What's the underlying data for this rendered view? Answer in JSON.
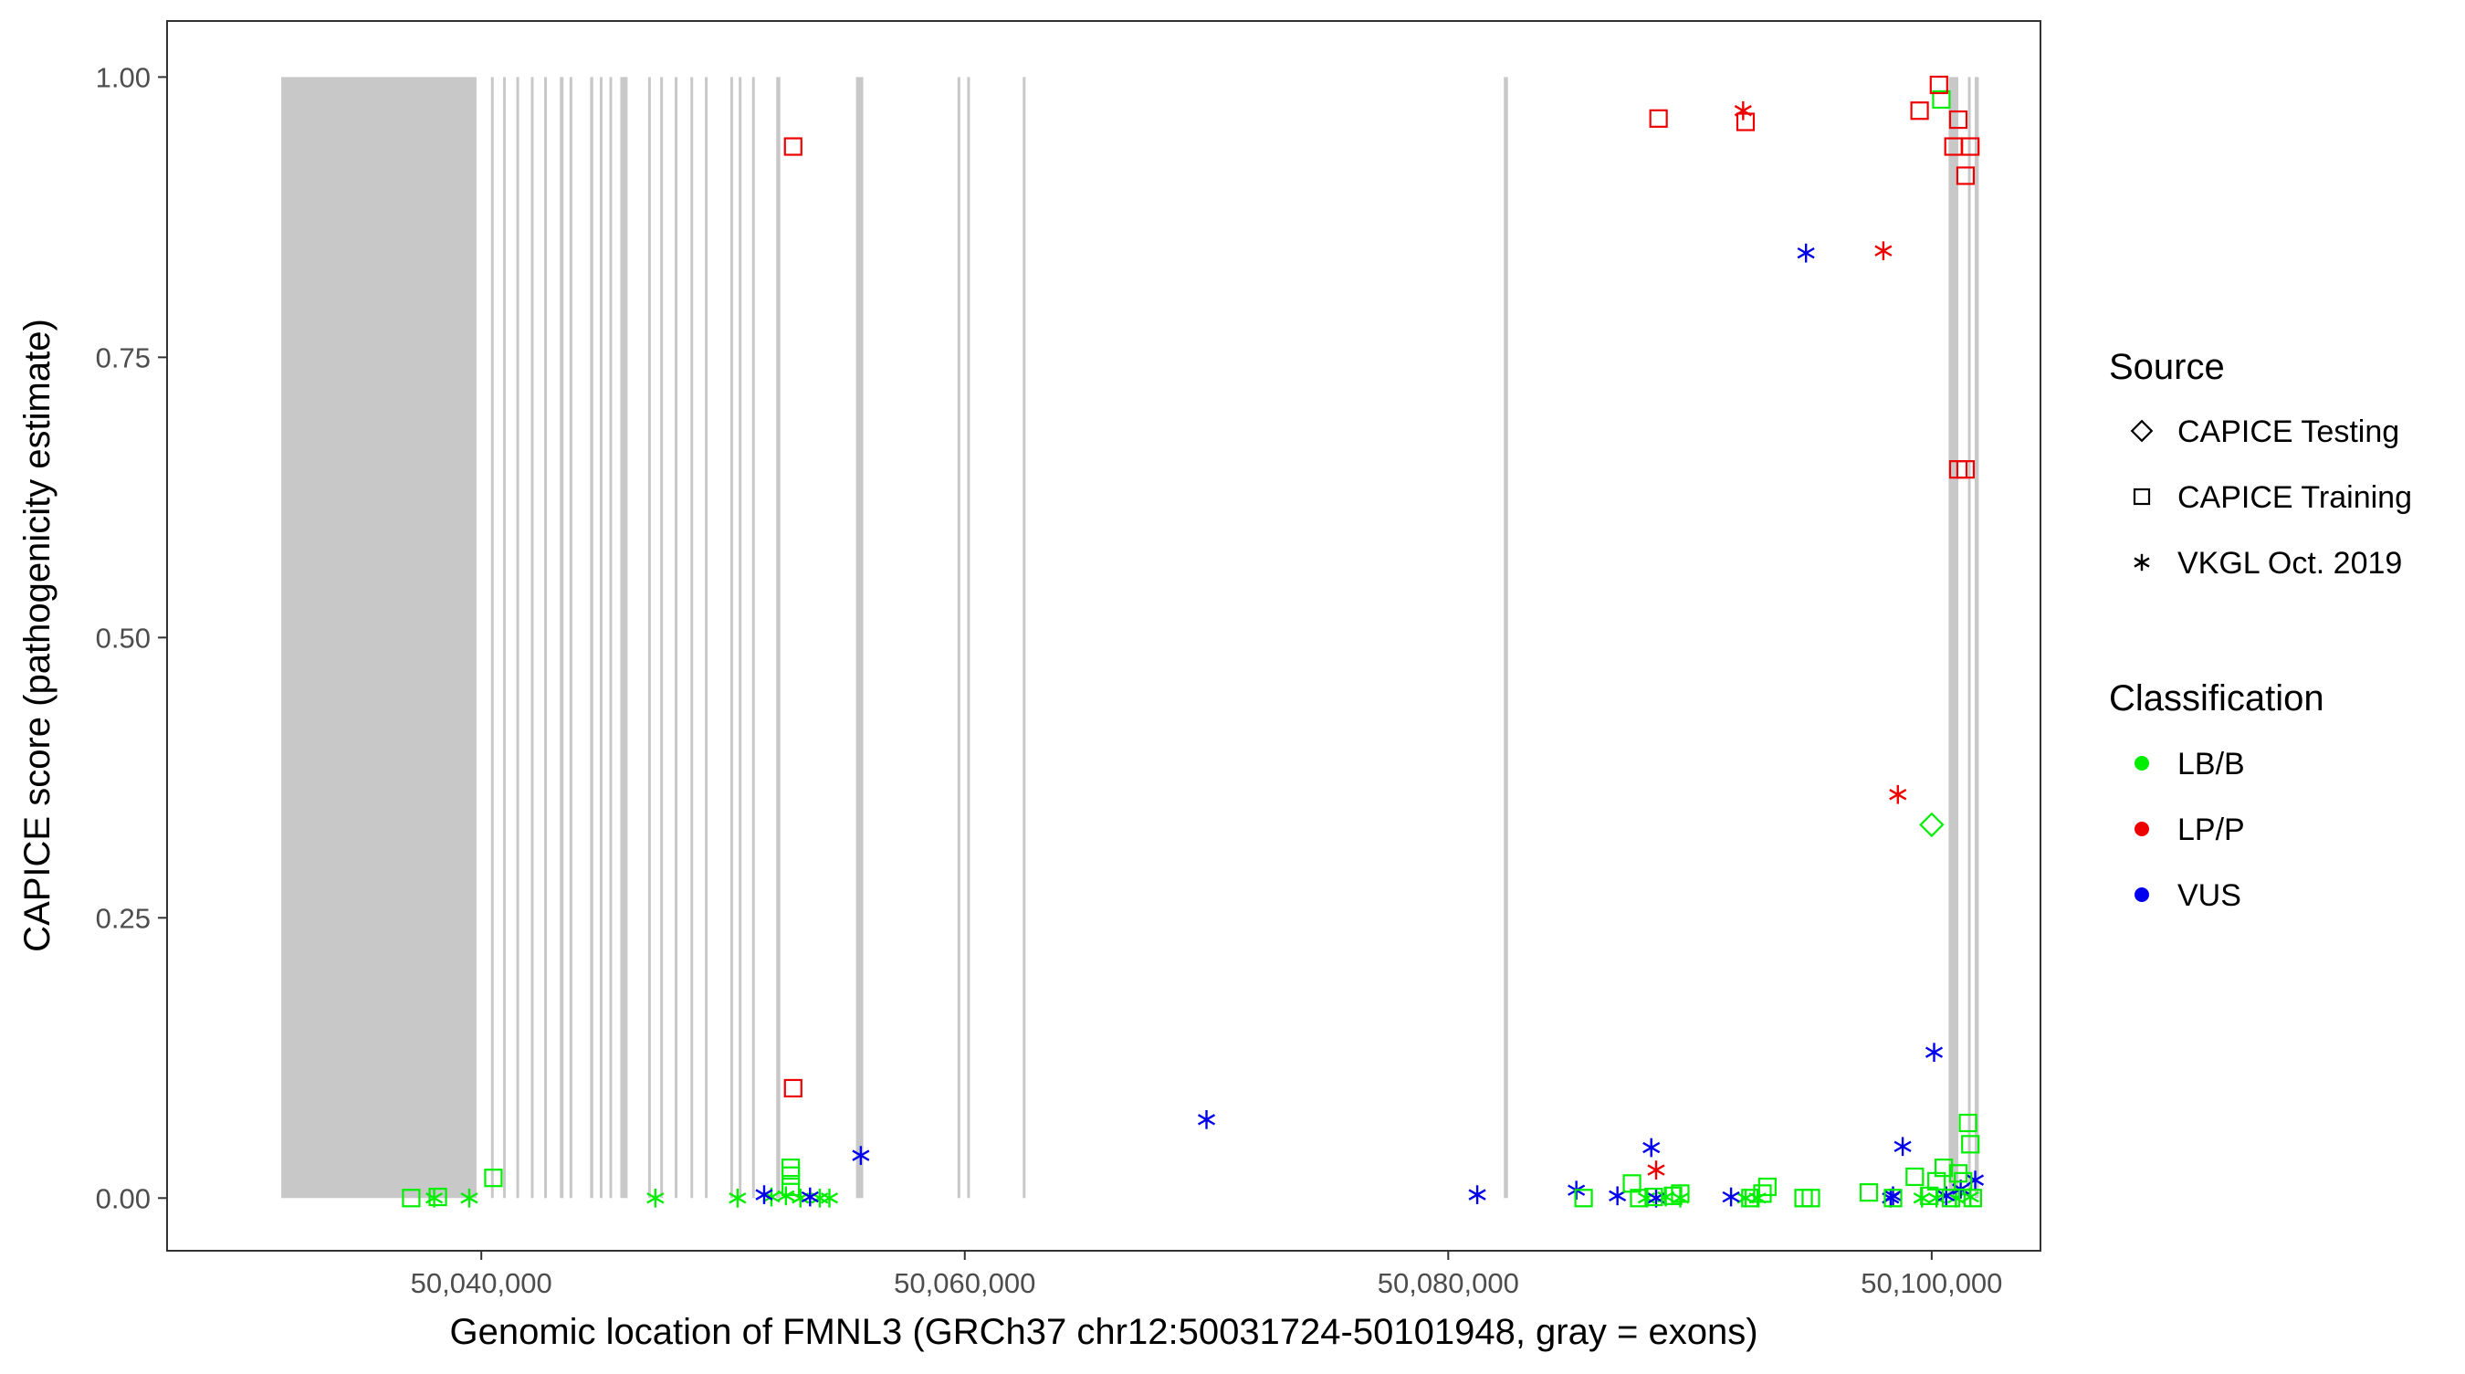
{
  "chart_data": {
    "type": "scatter",
    "title": "",
    "xlabel": "Genomic location of FMNL3 (GRCh37 chr12:50031724-50101948, gray = exons)",
    "ylabel": "CAPICE score (pathogenicity estimate)",
    "xlim": [
      50027000,
      50104500
    ],
    "ylim": [
      -0.047,
      1.05
    ],
    "x_ticks": [
      50040000,
      50060000,
      50080000,
      50100000
    ],
    "x_tick_labels": [
      "50,040,000",
      "50,060,000",
      "50,080,000",
      "50,100,000"
    ],
    "y_ticks": [
      0,
      0.25,
      0.5,
      0.75,
      1.0
    ],
    "y_tick_labels": [
      "0.00",
      "0.25",
      "0.50",
      "0.75",
      "1.00"
    ],
    "grid": false,
    "exons": [
      [
        50031724,
        50039800
      ],
      [
        50040400,
        50040470
      ],
      [
        50040900,
        50040970
      ],
      [
        50041450,
        50041520
      ],
      [
        50042050,
        50042120
      ],
      [
        50042600,
        50042670
      ],
      [
        50043250,
        50043400
      ],
      [
        50043650,
        50043720
      ],
      [
        50044500,
        50044630
      ],
      [
        50044900,
        50044970
      ],
      [
        50045300,
        50045370
      ],
      [
        50045750,
        50046050
      ],
      [
        50046900,
        50046970
      ],
      [
        50047400,
        50047470
      ],
      [
        50048000,
        50048070
      ],
      [
        50048650,
        50048720
      ],
      [
        50049250,
        50049320
      ],
      [
        50050300,
        50050370
      ],
      [
        50050650,
        50050720
      ],
      [
        50051200,
        50051270
      ],
      [
        50052200,
        50052370
      ],
      [
        50055500,
        50055800
      ],
      [
        50059700,
        50059770
      ],
      [
        50060100,
        50060170
      ],
      [
        50062400,
        50062470
      ],
      [
        50082300,
        50082470
      ],
      [
        50100700,
        50101100
      ],
      [
        50101500,
        50101600
      ],
      [
        50101780,
        50101948
      ]
    ],
    "legend": {
      "placement": "right",
      "source_title": "Source",
      "source_items": [
        {
          "label": "CAPICE Testing",
          "shape": "diamond"
        },
        {
          "label": "CAPICE Training",
          "shape": "square"
        },
        {
          "label": "VKGL Oct. 2019",
          "shape": "asterisk"
        }
      ],
      "class_title": "Classification",
      "class_items": [
        {
          "label": "LB/B",
          "color": "#00ee00"
        },
        {
          "label": "LP/P",
          "color": "#ee0000"
        },
        {
          "label": "VUS",
          "color": "#0000ee"
        }
      ]
    },
    "colors": {
      "LB/B": "#00ee00",
      "LP/P": "#ee0000",
      "VUS": "#0000ee",
      "exon": "#c8c8c8"
    },
    "series": [
      {
        "name": "VKGL Oct. 2019 LB/B",
        "shape": "asterisk",
        "classification": "LB/B",
        "x": [
          50038050,
          50039500,
          50047200,
          50050600,
          50052000,
          50052600,
          50053200,
          50054000,
          50054400,
          50088200,
          50089000,
          50089600,
          50092300,
          50092800,
          50099600,
          50100200,
          50101000,
          50101600
        ],
        "y": [
          0.0,
          0.0,
          0.0,
          0.0,
          0.001,
          0.002,
          0.0,
          0.0,
          0.0,
          0.0,
          0.001,
          0.0,
          0.0,
          0.0,
          0.0,
          0.0,
          0.0,
          0.001
        ]
      },
      {
        "name": "VKGL Oct. 2019 LP/P",
        "shape": "asterisk",
        "classification": "LP/P",
        "x": [
          50092200,
          50098000,
          50098600,
          50088600
        ],
        "y": [
          0.97,
          0.845,
          0.36,
          0.025
        ]
      },
      {
        "name": "VKGL Oct. 2019 VUS",
        "shape": "asterisk",
        "classification": "VUS",
        "x": [
          50094800,
          50100100,
          50055700,
          50070000,
          50081200,
          50085300,
          50087000,
          50088400,
          50088600,
          50091700,
          50098300,
          50098800,
          50101200,
          50101800,
          50051700,
          50053600,
          50098400,
          50100600
        ],
        "y": [
          0.843,
          0.13,
          0.038,
          0.07,
          0.003,
          0.007,
          0.002,
          0.045,
          0.0,
          0.001,
          0.0,
          0.046,
          0.008,
          0.016,
          0.003,
          0.001,
          0.002,
          0.002
        ]
      },
      {
        "name": "CAPICE Training LB/B",
        "shape": "square",
        "classification": "LB/B",
        "x": [
          50037100,
          50038200,
          50040500,
          50052800,
          50052800,
          50052800,
          50085600,
          50087600,
          50087900,
          50088500,
          50089300,
          50089600,
          50092500,
          50093000,
          50093200,
          50094700,
          50095000,
          50097400,
          50098400,
          50099300,
          50099900,
          50100200,
          50100500,
          50100800,
          50101100,
          50101300,
          50101500,
          50101600,
          50101700,
          50100400
        ],
        "y": [
          0.0,
          0.001,
          0.018,
          0.027,
          0.02,
          0.01,
          0.0,
          0.013,
          0.0,
          0.001,
          0.002,
          0.004,
          0.0,
          0.004,
          0.01,
          0.0,
          0.0,
          0.005,
          0.0,
          0.019,
          0.002,
          0.015,
          0.027,
          0.0,
          0.022,
          0.015,
          0.067,
          0.048,
          0.0,
          0.98
        ]
      },
      {
        "name": "CAPICE Training LP/P",
        "shape": "square",
        "classification": "LP/P",
        "x": [
          50052900,
          50052900,
          50088700,
          50092300,
          50099500,
          50100300,
          50100900,
          50101100,
          50101400,
          50101600,
          50101400,
          50101100
        ],
        "y": [
          0.938,
          0.098,
          0.963,
          0.96,
          0.97,
          0.993,
          0.938,
          0.962,
          0.912,
          0.938,
          0.65,
          0.65
        ]
      },
      {
        "name": "CAPICE Testing LB/B",
        "shape": "diamond",
        "classification": "LB/B",
        "x": [
          50100000
        ],
        "y": [
          0.333
        ]
      }
    ]
  }
}
